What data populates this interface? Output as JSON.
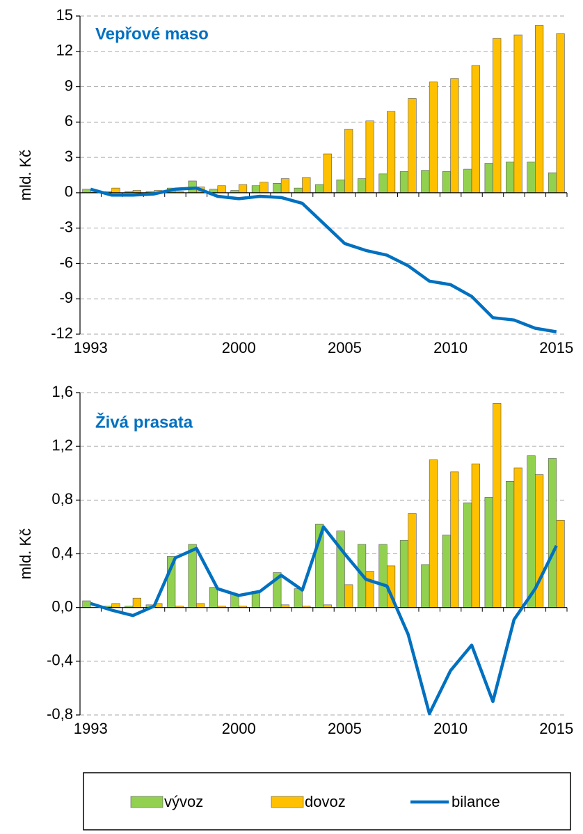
{
  "chart_data": [
    {
      "type": "bar",
      "title": "Vepřové maso",
      "y_label": "mld. Kč",
      "grid": true,
      "categories": [
        "1993",
        null,
        null,
        null,
        null,
        null,
        null,
        "2000",
        null,
        null,
        null,
        null,
        "2005",
        null,
        null,
        null,
        null,
        "2010",
        null,
        null,
        null,
        null,
        "2015"
      ],
      "ylim": [
        -12,
        15
      ],
      "yticks": [
        -12,
        -9,
        -6,
        -3,
        0,
        3,
        6,
        9,
        12,
        15
      ],
      "series": [
        {
          "name": "vývoz",
          "type": "bar",
          "color": "#92d050",
          "values": [
            0.3,
            0.1,
            0.1,
            0.1,
            0.4,
            1.0,
            0.3,
            0.2,
            0.6,
            0.8,
            0.4,
            0.7,
            1.1,
            1.2,
            1.6,
            1.8,
            1.9,
            1.8,
            2.0,
            2.5,
            2.6,
            2.6,
            1.7
          ]
        },
        {
          "name": "dovoz",
          "type": "bar",
          "color": "#ffc000",
          "values": [
            0.05,
            0.4,
            0.2,
            0.2,
            0.1,
            0.5,
            0.6,
            0.7,
            0.9,
            1.2,
            1.3,
            3.3,
            5.4,
            6.1,
            6.9,
            8.0,
            9.4,
            9.7,
            10.8,
            13.1,
            13.4,
            14.2,
            13.5
          ]
        },
        {
          "name": "bilance",
          "type": "line",
          "color": "#0070c0",
          "values": [
            0.3,
            -0.2,
            -0.2,
            -0.1,
            0.3,
            0.4,
            -0.3,
            -0.5,
            -0.3,
            -0.4,
            -0.9,
            -2.6,
            -4.3,
            -4.9,
            -5.3,
            -6.2,
            -7.5,
            -7.8,
            -8.8,
            -10.6,
            -10.8,
            -11.5,
            -11.8
          ]
        }
      ]
    },
    {
      "type": "bar",
      "title": "Živá prasata",
      "y_label": "mld. Kč",
      "grid": true,
      "categories": [
        "1993",
        null,
        null,
        null,
        null,
        null,
        null,
        "2000",
        null,
        null,
        null,
        null,
        "2005",
        null,
        null,
        null,
        null,
        "2010",
        null,
        null,
        null,
        null,
        "2015"
      ],
      "ylim": [
        -0.8,
        1.6
      ],
      "yticks": [
        {
          "value": -0.8,
          "label": "-0,8"
        },
        {
          "value": -0.4,
          "label": "-0,4"
        },
        {
          "value": 0,
          "label": "0,0"
        },
        {
          "value": 0.4,
          "label": "0,4"
        },
        {
          "value": 0.8,
          "label": "0,8"
        },
        {
          "value": 1.2,
          "label": "1,2"
        },
        {
          "value": 1.6,
          "label": "1,6"
        }
      ],
      "series": [
        {
          "name": "vývoz",
          "type": "bar",
          "color": "#92d050",
          "values": [
            0.05,
            0.01,
            0.01,
            0.02,
            0.38,
            0.47,
            0.15,
            0.1,
            0.12,
            0.26,
            0.14,
            0.62,
            0.57,
            0.47,
            0.47,
            0.5,
            0.32,
            0.54,
            0.78,
            0.82,
            0.94,
            1.13,
            1.11
          ]
        },
        {
          "name": "dovoz",
          "type": "bar",
          "color": "#ffc000",
          "values": [
            0.0,
            0.03,
            0.07,
            0.03,
            0.01,
            0.03,
            0.01,
            0.01,
            0.0,
            0.02,
            0.01,
            0.02,
            0.17,
            0.27,
            0.31,
            0.7,
            1.1,
            1.01,
            1.07,
            1.52,
            1.04,
            0.99,
            0.65
          ]
        },
        {
          "name": "bilance",
          "type": "line",
          "color": "#0070c0",
          "values": [
            0.03,
            -0.02,
            -0.06,
            0.01,
            0.37,
            0.44,
            0.14,
            0.09,
            0.12,
            0.24,
            0.13,
            0.6,
            0.4,
            0.21,
            0.16,
            -0.2,
            -0.79,
            -0.47,
            -0.28,
            -0.7,
            -0.09,
            0.14,
            0.46
          ]
        }
      ]
    }
  ]
}
